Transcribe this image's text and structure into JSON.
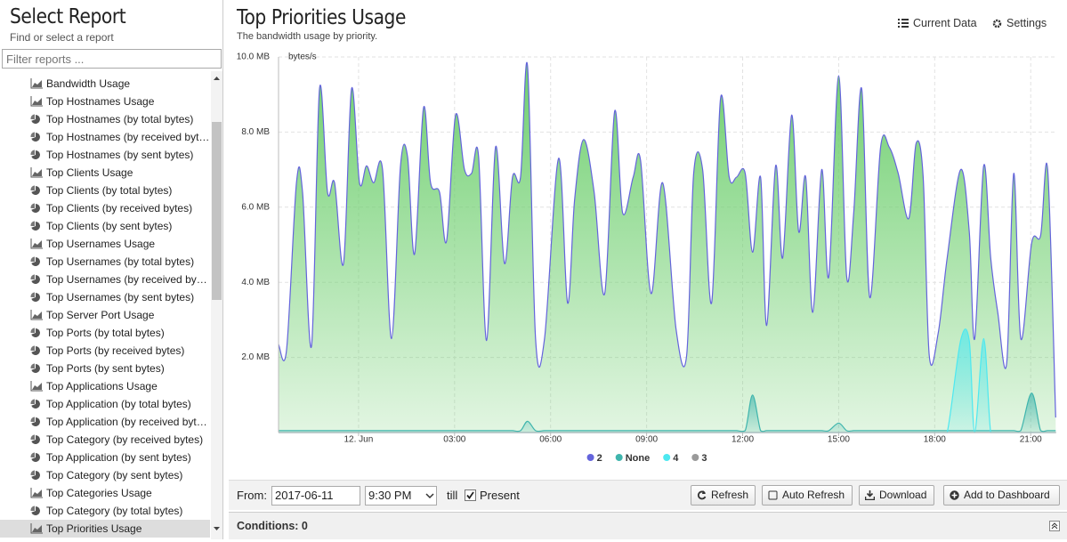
{
  "sidebar": {
    "title": "Select Report",
    "subtitle": "Find or select a report",
    "filter_placeholder": "Filter reports ...",
    "selected": 25,
    "items": [
      {
        "label": "Bandwidth Usage",
        "icon": "area"
      },
      {
        "label": "Top Hostnames Usage",
        "icon": "area"
      },
      {
        "label": "Top Hostnames (by total bytes)",
        "icon": "pie"
      },
      {
        "label": "Top Hostnames (by received bytes)",
        "icon": "pie"
      },
      {
        "label": "Top Hostnames (by sent bytes)",
        "icon": "pie"
      },
      {
        "label": "Top Clients Usage",
        "icon": "area"
      },
      {
        "label": "Top Clients (by total bytes)",
        "icon": "pie"
      },
      {
        "label": "Top Clients (by received bytes)",
        "icon": "pie"
      },
      {
        "label": "Top Clients (by sent bytes)",
        "icon": "pie"
      },
      {
        "label": "Top Usernames Usage",
        "icon": "area"
      },
      {
        "label": "Top Usernames (by total bytes)",
        "icon": "pie"
      },
      {
        "label": "Top Usernames (by received bytes)",
        "icon": "pie"
      },
      {
        "label": "Top Usernames (by sent bytes)",
        "icon": "pie"
      },
      {
        "label": "Top Server Port Usage",
        "icon": "area"
      },
      {
        "label": "Top Ports (by total bytes)",
        "icon": "pie"
      },
      {
        "label": "Top Ports (by received bytes)",
        "icon": "pie"
      },
      {
        "label": "Top Ports (by sent bytes)",
        "icon": "pie"
      },
      {
        "label": "Top Applications Usage",
        "icon": "area"
      },
      {
        "label": "Top Application (by total bytes)",
        "icon": "pie"
      },
      {
        "label": "Top Application (by received bytes)",
        "icon": "pie"
      },
      {
        "label": "Top Category (by received bytes)",
        "icon": "pie"
      },
      {
        "label": "Top Application (by sent bytes)",
        "icon": "pie"
      },
      {
        "label": "Top Category (by sent bytes)",
        "icon": "pie"
      },
      {
        "label": "Top Categories Usage",
        "icon": "area"
      },
      {
        "label": "Top Category (by total bytes)",
        "icon": "pie"
      },
      {
        "label": "Top Priorities Usage",
        "icon": "area"
      }
    ]
  },
  "header": {
    "title": "Top Priorities Usage",
    "subtitle": "The bandwidth usage by priority.",
    "current_data": "Current Data",
    "settings": "Settings"
  },
  "chart_data": {
    "type": "area",
    "y_label": "bytes/s",
    "grid": true,
    "xlim": [
      -2.5,
      21.8
    ],
    "ylim": [
      0,
      10
    ],
    "xticks": [
      {
        "value": 0,
        "label": "12. Jun"
      },
      {
        "value": 3,
        "label": "03:00"
      },
      {
        "value": 6,
        "label": "06:00"
      },
      {
        "value": 9,
        "label": "09:00"
      },
      {
        "value": 12,
        "label": "12:00"
      },
      {
        "value": 15,
        "label": "15:00"
      },
      {
        "value": 18,
        "label": "18:00"
      },
      {
        "value": 21,
        "label": "21:00"
      }
    ],
    "yticks": [
      {
        "value": 2,
        "label": "2.0 MB"
      },
      {
        "value": 4,
        "label": "4.0 MB"
      },
      {
        "value": 6,
        "label": "6.0 MB"
      },
      {
        "value": 8,
        "label": "8.0 MB"
      },
      {
        "value": 10,
        "label": "10.0 MB"
      }
    ],
    "x": [
      -2.5,
      -2.25,
      -1.94,
      -1.75,
      -1.47,
      -1.22,
      -0.97,
      -0.75,
      -0.47,
      -0.22,
      0.03,
      0.25,
      0.47,
      0.75,
      1.03,
      1.31,
      1.53,
      1.75,
      2.03,
      2.25,
      2.53,
      2.75,
      3.03,
      3.31,
      3.53,
      3.75,
      4.0,
      4.28,
      4.56,
      4.81,
      5.06,
      5.28,
      5.53,
      5.81,
      6.25,
      6.53,
      6.75,
      7.03,
      7.36,
      7.69,
      8.0,
      8.25,
      8.58,
      8.81,
      9.14,
      9.5,
      9.92,
      10.25,
      10.47,
      10.75,
      11.03,
      11.31,
      11.58,
      11.81,
      12.08,
      12.31,
      12.56,
      12.75,
      13.03,
      13.25,
      13.53,
      13.75,
      13.97,
      14.19,
      14.47,
      14.69,
      15.0,
      15.25,
      15.47,
      15.72,
      15.97,
      16.31,
      16.58,
      16.86,
      17.19,
      17.42,
      17.64,
      17.83,
      18.11,
      18.39,
      18.81,
      19.08,
      19.25,
      19.53,
      19.75,
      19.97,
      20.25,
      20.47,
      20.69,
      21.03,
      21.31,
      21.53,
      21.78
    ],
    "series": [
      {
        "name": "2",
        "color": "#6464dc",
        "fill": "#6fcf6f",
        "values": [
          2.35,
          2.2,
          6.65,
          6.4,
          2.3,
          9.15,
          6.4,
          6.65,
          4.5,
          9.15,
          6.65,
          7.1,
          6.65,
          7.0,
          2.5,
          7.1,
          7.35,
          4.75,
          8.65,
          6.65,
          6.4,
          5.1,
          8.45,
          7.0,
          6.9,
          7.35,
          2.45,
          7.6,
          4.5,
          6.8,
          6.8,
          9.75,
          2.5,
          2.5,
          7.3,
          3.45,
          6.2,
          7.8,
          6.4,
          3.7,
          8.55,
          5.85,
          6.8,
          7.25,
          3.7,
          6.65,
          2.75,
          2.05,
          6.9,
          7.0,
          3.45,
          8.9,
          6.8,
          6.8,
          6.9,
          4.8,
          6.8,
          2.85,
          7.1,
          4.65,
          8.45,
          5.35,
          6.8,
          3.2,
          7.0,
          4.15,
          9.5,
          4.15,
          5.85,
          9.15,
          3.6,
          7.6,
          7.6,
          6.9,
          5.7,
          7.7,
          6.8,
          2.05,
          2.65,
          4.65,
          7.0,
          5.35,
          2.5,
          7.1,
          4.65,
          3.2,
          1.85,
          6.9,
          2.5,
          5.05,
          5.25,
          7.0,
          0.4
        ]
      },
      {
        "name": "None",
        "color": "#3fb5ad",
        "values": [
          0.05,
          0.05,
          0.05,
          0.05,
          0.05,
          0.05,
          0.05,
          0.05,
          0.05,
          0.05,
          0.05,
          0.05,
          0.05,
          0.05,
          0.05,
          0.05,
          0.05,
          0.05,
          0.05,
          0.05,
          0.05,
          0.05,
          0.05,
          0.05,
          0.05,
          0.05,
          0.05,
          0.05,
          0.05,
          0.05,
          0.05,
          0.3,
          0.05,
          0.05,
          0.05,
          0.05,
          0.05,
          0.05,
          0.05,
          0.05,
          0.05,
          0.05,
          0.05,
          0.05,
          0.05,
          0.05,
          0.05,
          0.05,
          0.05,
          0.05,
          0.05,
          0.05,
          0.05,
          0.05,
          0.05,
          1.0,
          0.05,
          0.05,
          0.05,
          0.05,
          0.05,
          0.05,
          0.05,
          0.05,
          0.05,
          0.05,
          0.25,
          0.05,
          0.05,
          0.05,
          0.05,
          0.05,
          0.05,
          0.05,
          0.05,
          0.05,
          0.05,
          0.05,
          0.05,
          0.05,
          0.05,
          0.05,
          0.05,
          0.05,
          0.05,
          0.05,
          0.05,
          0.05,
          0.05,
          1.05,
          0.05,
          0.05,
          0.05
        ]
      },
      {
        "name": "4",
        "color": "#4de8f0",
        "values": [
          0,
          0,
          0,
          0,
          0,
          0,
          0,
          0,
          0,
          0,
          0,
          0,
          0,
          0,
          0,
          0,
          0,
          0,
          0,
          0,
          0,
          0,
          0,
          0,
          0,
          0,
          0,
          0,
          0,
          0,
          0,
          0,
          0,
          0,
          0,
          0,
          0,
          0,
          0,
          0,
          0,
          0,
          0,
          0,
          0,
          0,
          0,
          0,
          0,
          0,
          0,
          0,
          0,
          0,
          0,
          0,
          0,
          0,
          0,
          0,
          0,
          0,
          0,
          0,
          0,
          0,
          0,
          0,
          0,
          0,
          0,
          0,
          0,
          0,
          0,
          0,
          0,
          0,
          0,
          0,
          2.45,
          2.45,
          0,
          2.5,
          0,
          0,
          0,
          0,
          0,
          0,
          0,
          0,
          0
        ]
      },
      {
        "name": "3",
        "color": "#9a9a9a",
        "values": [
          0,
          0,
          0,
          0,
          0,
          0,
          0,
          0,
          0,
          0,
          0,
          0,
          0,
          0,
          0,
          0,
          0,
          0,
          0,
          0,
          0,
          0,
          0,
          0,
          0,
          0,
          0,
          0,
          0,
          0,
          0,
          0,
          0,
          0,
          0,
          0,
          0,
          0,
          0,
          0,
          0,
          0,
          0,
          0,
          0,
          0,
          0,
          0,
          0,
          0,
          0,
          0,
          0,
          0,
          0,
          0,
          0,
          0,
          0,
          0,
          0,
          0,
          0,
          0,
          0,
          0,
          0,
          0,
          0,
          0,
          0,
          0,
          0,
          0,
          0,
          0,
          0,
          0,
          0,
          0,
          0,
          0,
          0,
          0,
          0,
          0,
          0,
          0,
          0,
          0,
          0,
          0,
          0
        ]
      }
    ]
  },
  "controls": {
    "from": "From:",
    "date": "2017-06-11",
    "time": "9:30 PM",
    "till": "till",
    "present": "Present",
    "present_checked": true,
    "refresh": "Refresh",
    "auto_refresh": "Auto Refresh",
    "download": "Download",
    "add_to_dashboard": "Add to Dashboard"
  },
  "conditions": {
    "label": "Conditions: 0"
  }
}
